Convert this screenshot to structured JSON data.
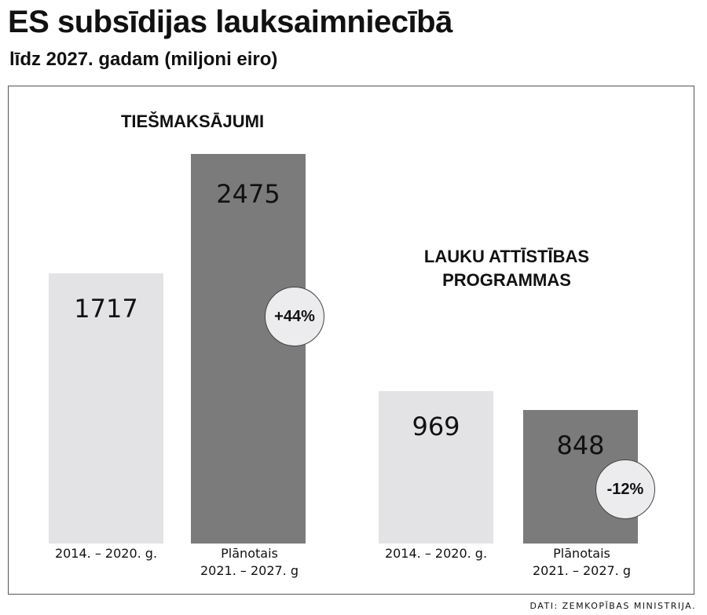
{
  "title": "ES subsīdijas lauksaimniecībā",
  "subtitle": "līdz 2027. gadam (miljoni eiro)",
  "source": "DATI: ZEMKOPĪBAS MINISTRIJA.",
  "chart_data": [
    {
      "type": "bar",
      "title": "TIEŠMAKSĀJUMI",
      "categories": [
        "2014. – 2020. g.",
        "Plānotais 2021. – 2027. g"
      ],
      "category_lines": [
        [
          "2014. – 2020. g."
        ],
        [
          "Plānotais",
          "2021. – 2027. g"
        ]
      ],
      "values": [
        1717,
        2475
      ],
      "value_labels": [
        "1717",
        "2475"
      ],
      "change": "+44%",
      "colors": [
        "#e3e3e5",
        "#7b7b7b"
      ]
    },
    {
      "type": "bar",
      "title_lines": [
        "LAUKU ATTĪSTĪBAS",
        "PROGRAMMAS"
      ],
      "categories": [
        "2014. – 2020. g.",
        "Plānotais 2021. – 2027. g"
      ],
      "category_lines": [
        [
          "2014. – 2020. g."
        ],
        [
          "Plānotais",
          "2021. – 2027. g"
        ]
      ],
      "values": [
        969,
        848
      ],
      "value_labels": [
        "969",
        "848"
      ],
      "change": "-12%",
      "colors": [
        "#e3e3e5",
        "#7b7b7b"
      ]
    }
  ]
}
